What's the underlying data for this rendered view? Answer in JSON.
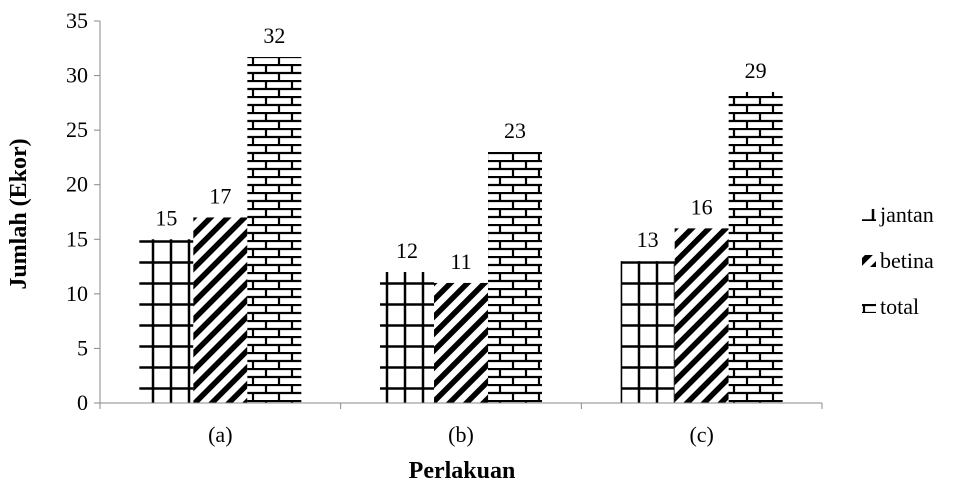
{
  "chart_data": {
    "type": "bar",
    "xlabel": "Perlakuan",
    "ylabel": "Jumlah (Ekor)",
    "categories": [
      "(a)",
      "(b)",
      "(c)"
    ],
    "series": [
      {
        "name": "jantan",
        "values": [
          15,
          12,
          13
        ],
        "labels": [
          "15",
          "12",
          "13"
        ],
        "pattern": "grid"
      },
      {
        "name": "betina",
        "values": [
          17,
          11,
          16
        ],
        "labels": [
          "17",
          "11",
          "16"
        ],
        "pattern": "diagonal"
      },
      {
        "name": "total",
        "values": [
          31.7,
          23,
          28.5
        ],
        "labels": [
          "32",
          "23",
          "29"
        ],
        "pattern": "brick"
      }
    ],
    "ylim": [
      0,
      35
    ],
    "yticks": [
      0,
      5,
      10,
      15,
      20,
      25,
      30,
      35
    ],
    "grid": false,
    "legend_position": "right"
  }
}
